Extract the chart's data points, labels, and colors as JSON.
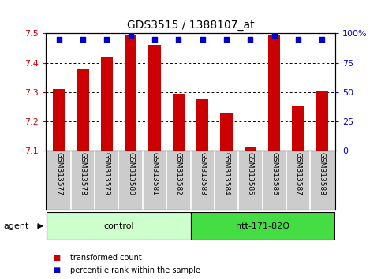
{
  "title": "GDS3515 / 1388107_at",
  "categories": [
    "GSM313577",
    "GSM313578",
    "GSM313579",
    "GSM313580",
    "GSM313581",
    "GSM313582",
    "GSM313583",
    "GSM313584",
    "GSM313585",
    "GSM313586",
    "GSM313587",
    "GSM313588"
  ],
  "bar_values": [
    7.31,
    7.38,
    7.42,
    7.495,
    7.46,
    7.295,
    7.275,
    7.23,
    7.11,
    7.495,
    7.25,
    7.305
  ],
  "bar_base": 7.1,
  "percentile_values": [
    95,
    95,
    95,
    98,
    95,
    95,
    95,
    95,
    95,
    98,
    95,
    95
  ],
  "ylim_left": [
    7.1,
    7.5
  ],
  "ylim_right": [
    0,
    100
  ],
  "yticks_left": [
    7.1,
    7.2,
    7.3,
    7.4,
    7.5
  ],
  "yticks_right": [
    0,
    25,
    50,
    75,
    100
  ],
  "bar_color": "#cc0000",
  "percentile_color": "#0000cc",
  "bar_width": 0.5,
  "group_labels": [
    "control",
    "htt-171-82Q"
  ],
  "group_ranges": [
    [
      0,
      5
    ],
    [
      6,
      11
    ]
  ],
  "group_colors": [
    "#ccffcc",
    "#44dd44"
  ],
  "agent_label": "agent",
  "legend_items": [
    {
      "label": "transformed count",
      "color": "#cc0000"
    },
    {
      "label": "percentile rank within the sample",
      "color": "#0000cc"
    }
  ],
  "bar_color_left_axis": "#cc0000",
  "right_axis_color": "#0000cc",
  "background_color": "#ffffff",
  "tick_label_area_color": "#cccccc",
  "figsize": [
    4.83,
    3.54
  ],
  "dpi": 100
}
